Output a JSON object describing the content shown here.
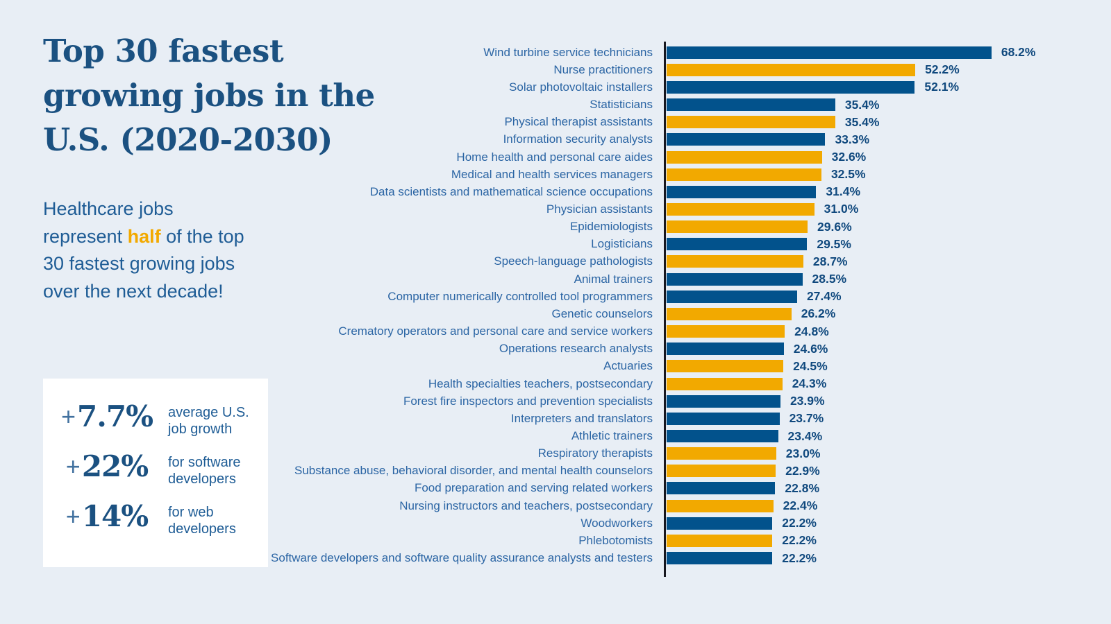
{
  "header": {
    "title_line1": "Top 30 fastest",
    "title_line2": "growing jobs in the",
    "title_line3": "U.S. (2020-2030)",
    "subtitle_pre": "Healthcare jobs represent ",
    "subtitle_highlight": "half",
    "subtitle_post": " of the top 30 fastest growing jobs over the next decade!"
  },
  "stats": {
    "items": [
      {
        "plus": "+",
        "value": "7.7%",
        "label": "average U.S. job growth"
      },
      {
        "plus": "+",
        "value": "22%",
        "label": "for software developers"
      },
      {
        "plus": "+",
        "value": "14%",
        "label": "for web developers"
      }
    ]
  },
  "colors": {
    "blue": "#02528C",
    "orange": "#F2A900",
    "background": "#E8EEF5",
    "title_text": "#1B5181",
    "highlight": "#F2A900"
  },
  "chart_data": {
    "type": "bar",
    "orientation": "horizontal",
    "title": "Top 30 fastest growing jobs in the U.S. (2020-2030)",
    "unit": "%",
    "xlim": [
      0,
      70
    ],
    "grid": false,
    "legend": "none",
    "note_color_meaning": "orange bars are healthcare jobs",
    "bars": [
      {
        "label": "Wind turbine service technicians",
        "value": 68.2,
        "display": "68.2%",
        "color": "blue"
      },
      {
        "label": "Nurse practitioners",
        "value": 52.2,
        "display": "52.2%",
        "color": "orange"
      },
      {
        "label": "Solar photovoltaic installers",
        "value": 52.1,
        "display": "52.1%",
        "color": "blue"
      },
      {
        "label": "Statisticians",
        "value": 35.4,
        "display": "35.4%",
        "color": "blue"
      },
      {
        "label": "Physical therapist assistants",
        "value": 35.4,
        "display": "35.4%",
        "color": "orange"
      },
      {
        "label": "Information security analysts",
        "value": 33.3,
        "display": "33.3%",
        "color": "blue"
      },
      {
        "label": "Home health and personal care aides",
        "value": 32.6,
        "display": "32.6%",
        "color": "orange"
      },
      {
        "label": "Medical and health services managers",
        "value": 32.5,
        "display": "32.5%",
        "color": "orange"
      },
      {
        "label": "Data scientists and mathematical science occupations",
        "value": 31.4,
        "display": "31.4%",
        "color": "blue"
      },
      {
        "label": "Physician assistants",
        "value": 31.0,
        "display": "31.0%",
        "color": "orange"
      },
      {
        "label": "Epidemiologists",
        "value": 29.6,
        "display": "29.6%",
        "color": "orange"
      },
      {
        "label": "Logisticians",
        "value": 29.5,
        "display": "29.5%",
        "color": "blue"
      },
      {
        "label": "Speech-language pathologists",
        "value": 28.7,
        "display": "28.7%",
        "color": "orange"
      },
      {
        "label": "Animal trainers",
        "value": 28.5,
        "display": "28.5%",
        "color": "blue"
      },
      {
        "label": "Computer numerically controlled tool programmers",
        "value": 27.4,
        "display": "27.4%",
        "color": "blue"
      },
      {
        "label": "Genetic counselors",
        "value": 26.2,
        "display": "26.2%",
        "color": "orange"
      },
      {
        "label": "Crematory operators and personal care and service workers",
        "value": 24.8,
        "display": "24.8%",
        "color": "orange"
      },
      {
        "label": "Operations research analysts",
        "value": 24.6,
        "display": "24.6%",
        "color": "blue"
      },
      {
        "label": "Actuaries",
        "value": 24.5,
        "display": "24.5%",
        "color": "orange"
      },
      {
        "label": "Health specialties teachers, postsecondary",
        "value": 24.3,
        "display": "24.3%",
        "color": "orange"
      },
      {
        "label": "Forest fire inspectors and prevention specialists",
        "value": 23.9,
        "display": "23.9%",
        "color": "blue"
      },
      {
        "label": "Interpreters and translators",
        "value": 23.7,
        "display": "23.7%",
        "color": "blue"
      },
      {
        "label": "Athletic trainers",
        "value": 23.4,
        "display": "23.4%",
        "color": "blue"
      },
      {
        "label": "Respiratory therapists",
        "value": 23.0,
        "display": "23.0%",
        "color": "orange"
      },
      {
        "label": "Substance abuse, behavioral disorder, and mental health counselors",
        "value": 22.9,
        "display": "22.9%",
        "color": "orange"
      },
      {
        "label": "Food preparation and serving related workers",
        "value": 22.8,
        "display": "22.8%",
        "color": "blue"
      },
      {
        "label": "Nursing instructors and teachers, postsecondary",
        "value": 22.4,
        "display": "22.4%",
        "color": "orange"
      },
      {
        "label": "Woodworkers",
        "value": 22.2,
        "display": "22.2%",
        "color": "blue"
      },
      {
        "label": "Phlebotomists",
        "value": 22.2,
        "display": "22.2%",
        "color": "orange"
      },
      {
        "label": "Software developers and software quality assurance analysts and testers",
        "value": 22.2,
        "display": "22.2%",
        "color": "blue"
      }
    ]
  }
}
